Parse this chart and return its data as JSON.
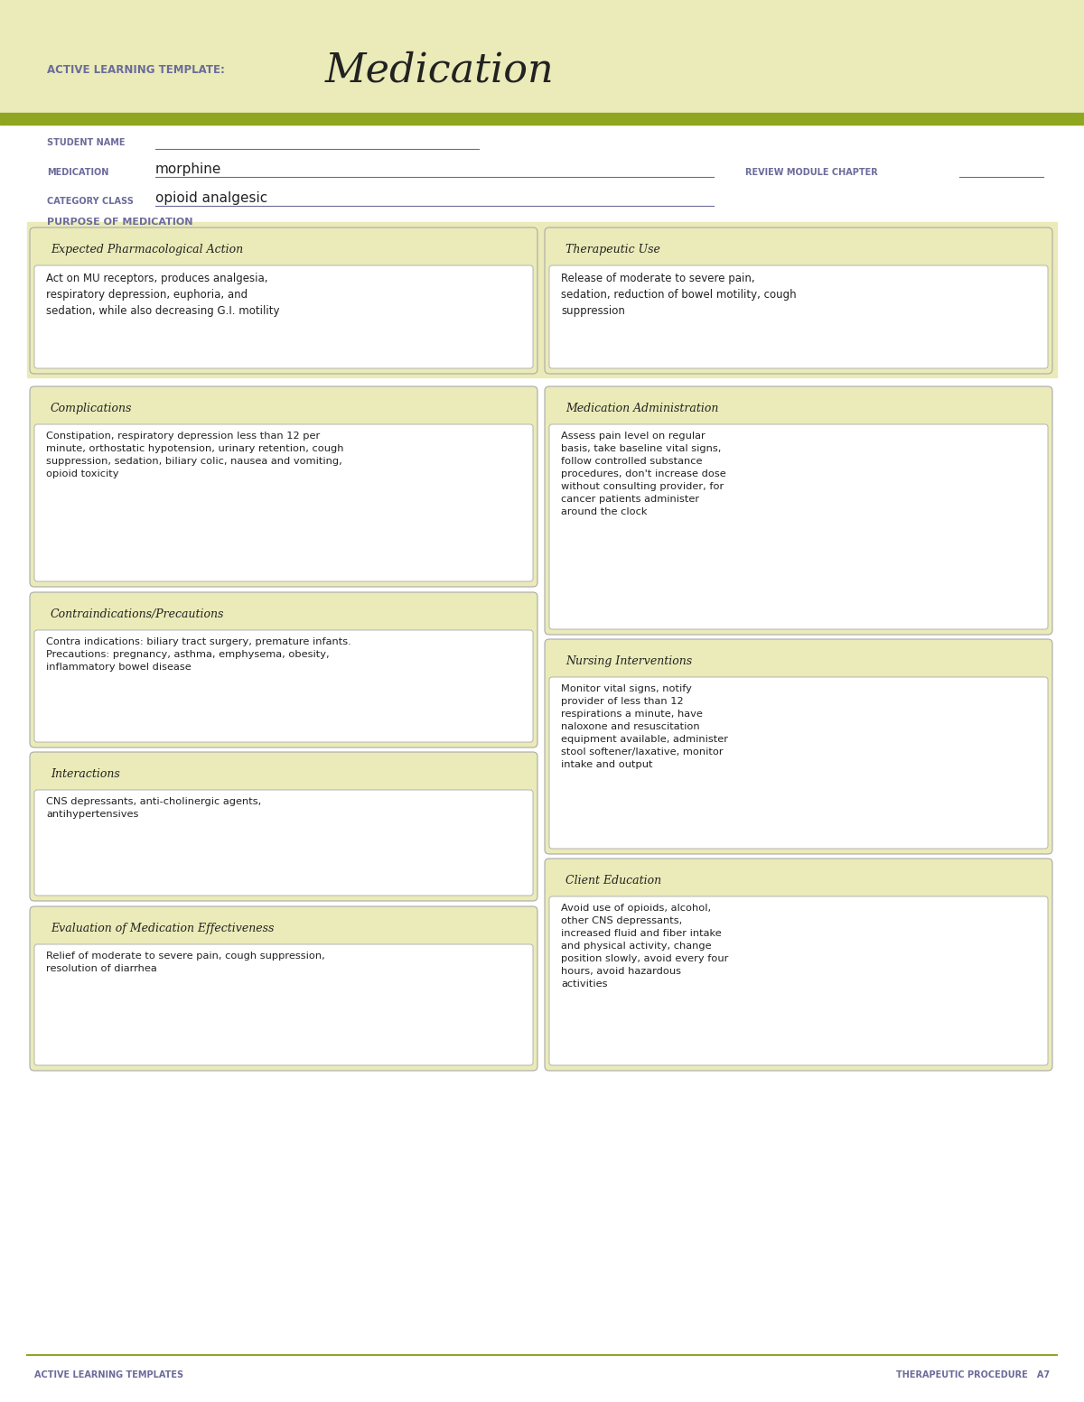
{
  "title_prefix": "ACTIVE LEARNING TEMPLATE:",
  "title_main": "Medication",
  "header_bg": "#eaebb8",
  "white_bg": "#ffffff",
  "olive_line": "#8fa620",
  "border_color": "#aaaaaa",
  "purple_color": "#6b6b9b",
  "dark_text": "#222222",
  "student_name_label": "STUDENT NAME",
  "medication_label": "MEDICATION",
  "medication_value": "morphine",
  "review_label": "REVIEW MODULE CHAPTER",
  "category_label": "CATEGORY CLASS",
  "category_value": "opioid analgesic",
  "purpose_label": "PURPOSE OF MEDICATION",
  "boxes": {
    "expected_pharma": {
      "title": "Expected Pharmacological Action",
      "content": "Act on MU receptors, produces analgesia,\nrespiratory depression, euphoria, and\nsedation, while also decreasing G.I. motility"
    },
    "therapeutic_use": {
      "title": "Therapeutic Use",
      "content": "Release of moderate to severe pain,\nsedation, reduction of bowel motility, cough\nsuppression"
    },
    "complications": {
      "title": "Complications",
      "content": "Constipation, respiratory depression less than 12 per\nminute, orthostatic hypotension, urinary retention, cough\nsuppression, sedation, biliary colic, nausea and vomiting,\nopioid toxicity"
    },
    "med_admin": {
      "title": "Medication Administration",
      "content": "Assess pain level on regular\nbasis, take baseline vital signs,\nfollow controlled substance\nprocedures, don't increase dose\nwithout consulting provider, for\ncancer patients administer\naround the clock"
    },
    "contraindications": {
      "title": "Contraindications/Precautions",
      "content": "Contra indications: biliary tract surgery, premature infants.\nPrecautions: pregnancy, asthma, emphysema, obesity,\ninflammatory bowel disease"
    },
    "nursing_interventions": {
      "title": "Nursing Interventions",
      "content": "Monitor vital signs, notify\nprovider of less than 12\nrespirations a minute, have\nnaloxone and resuscitation\nequipment available, administer\nstool softener/laxative, monitor\nintake and output"
    },
    "interactions": {
      "title": "Interactions",
      "content": "CNS depressants, anti-cholinergic agents,\nantihypertensives"
    },
    "client_education": {
      "title": "Client Education",
      "content": "Avoid use of opioids, alcohol,\nother CNS depressants,\nincreased fluid and fiber intake\nand physical activity, change\nposition slowly, avoid every four\nhours, avoid hazardous\nactivities"
    },
    "eval_effectiveness": {
      "title": "Evaluation of Medication Effectiveness",
      "content": "Relief of moderate to severe pain, cough suppression,\nresolution of diarrhea"
    }
  },
  "footer_left": "ACTIVE LEARNING TEMPLATES",
  "footer_right": "THERAPEUTIC PROCEDURE   A7"
}
